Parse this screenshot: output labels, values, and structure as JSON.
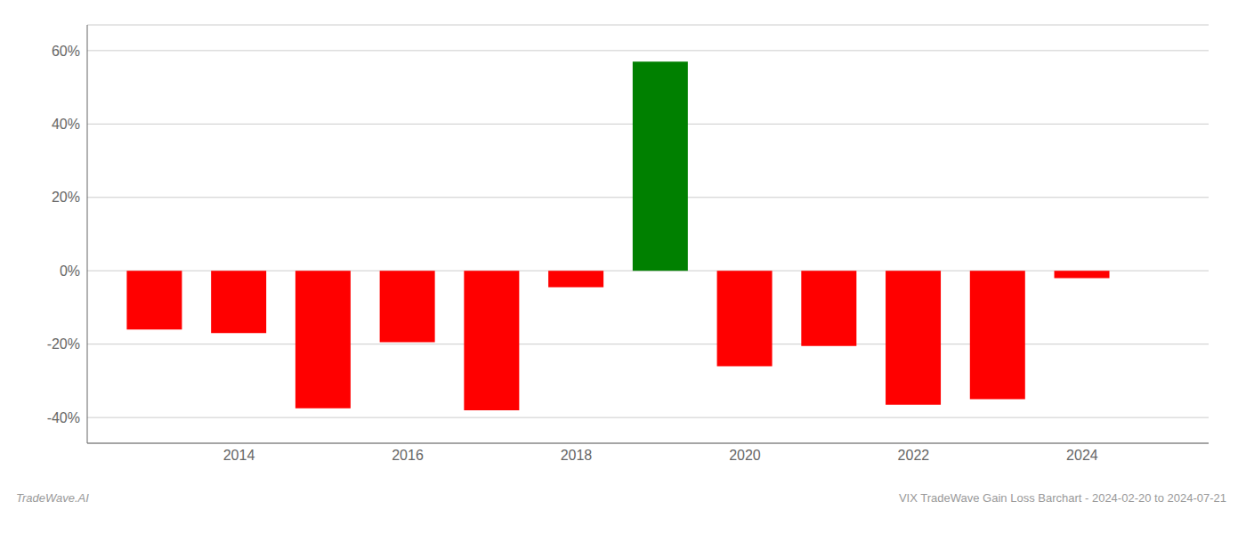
{
  "chart_data": {
    "type": "bar",
    "x": [
      2013,
      2014,
      2015,
      2016,
      2017,
      2018,
      2019,
      2020,
      2021,
      2022,
      2023,
      2024
    ],
    "values": [
      -16.0,
      -17.0,
      -37.5,
      -19.5,
      -38.0,
      -4.5,
      57.0,
      -26.0,
      -20.5,
      -36.5,
      -35.0,
      -2.0
    ],
    "colors": [
      "#ff0000",
      "#ff0000",
      "#ff0000",
      "#ff0000",
      "#ff0000",
      "#ff0000",
      "#008000",
      "#ff0000",
      "#ff0000",
      "#ff0000",
      "#ff0000",
      "#ff0000"
    ],
    "xlim": [
      2012.2,
      2025.5
    ],
    "xticks": [
      2014,
      2016,
      2018,
      2020,
      2022,
      2024
    ],
    "ylim": [
      -47,
      67
    ],
    "yticks": [
      {
        "value": -40,
        "label": "-40%"
      },
      {
        "value": -20,
        "label": "-20%"
      },
      {
        "value": 0,
        "label": "0%"
      },
      {
        "value": 20,
        "label": "20%"
      },
      {
        "value": 40,
        "label": "40%"
      },
      {
        "value": 60,
        "label": "60%"
      }
    ],
    "grid": true,
    "annotations": [
      "TradeWave.AI",
      "VIX TradeWave Gain Loss Barchart - 2024-02-20 to 2024-07-21"
    ]
  }
}
